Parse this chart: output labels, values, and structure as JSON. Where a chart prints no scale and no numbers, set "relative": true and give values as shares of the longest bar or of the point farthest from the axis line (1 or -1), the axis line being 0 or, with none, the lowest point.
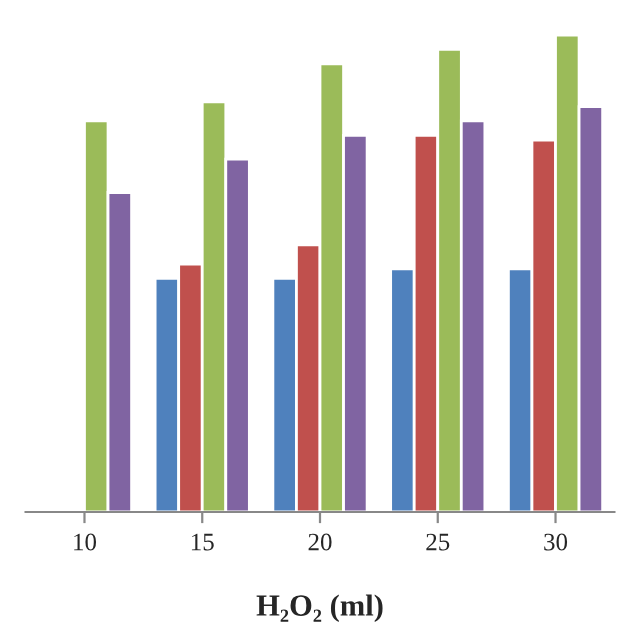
{
  "chart_data": {
    "type": "bar",
    "xlabel": "H₂O₂ (ml)",
    "relative": true,
    "categories": [
      "10",
      "15",
      "20",
      "25",
      "30"
    ],
    "series": [
      {
        "color": "#4f81bd",
        "values": [
          null,
          0.49,
          0.49,
          0.51,
          0.51
        ]
      },
      {
        "color": "#c0504d",
        "values": [
          null,
          0.52,
          0.56,
          0.79,
          0.78
        ]
      },
      {
        "color": "#9bbb59",
        "values": [
          0.82,
          0.86,
          0.94,
          0.97,
          1.0
        ]
      },
      {
        "color": "#8064a2",
        "values": [
          0.67,
          0.74,
          0.79,
          0.82,
          0.85
        ]
      }
    ],
    "grid": false,
    "legend": false
  }
}
